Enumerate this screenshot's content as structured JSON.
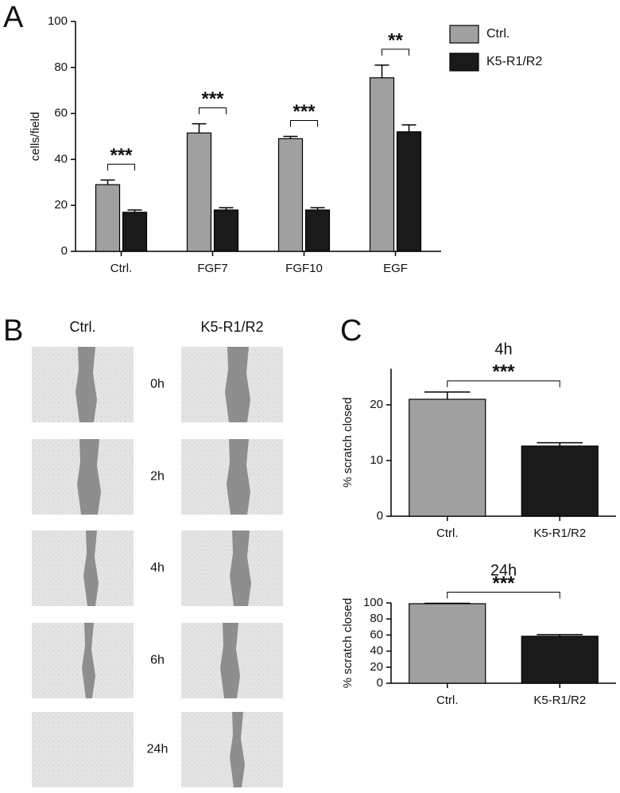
{
  "panel_labels": [
    "A",
    "B",
    "C"
  ],
  "chart_data": [
    {
      "type": "bar",
      "y_label": "cells/field",
      "categories": [
        "Ctrl.",
        "FGF7",
        "FGF10",
        "EGF"
      ],
      "series": [
        {
          "name": "Ctrl.",
          "color": "#a0a0a0",
          "values": [
            29,
            51.5,
            49,
            75.5
          ],
          "errors": [
            2,
            4,
            1,
            5.5
          ]
        },
        {
          "name": "K5-R1/R2",
          "color": "#1a1a1a",
          "values": [
            17,
            18,
            18,
            52
          ],
          "errors": [
            1,
            1,
            1,
            3
          ]
        }
      ],
      "significance": [
        "***",
        "***",
        "***",
        "**"
      ],
      "ylim": [
        0,
        100
      ],
      "yticks": [
        0,
        20,
        40,
        60,
        80,
        100
      ],
      "legend": "top-right"
    },
    {
      "type": "bar",
      "title": "4h",
      "y_label": "% scratch closed",
      "categories": [
        "Ctrl.",
        "K5-R1/R2"
      ],
      "values": [
        21,
        12.6
      ],
      "errors": [
        1.3,
        0.6
      ],
      "colors": [
        "#a0a0a0",
        "#1a1a1a"
      ],
      "significance": [
        "***"
      ],
      "ylim": [
        0,
        26.5
      ],
      "yticks": [
        0,
        10,
        20
      ]
    },
    {
      "type": "bar",
      "title": "24h",
      "y_label": "% scratch closed",
      "categories": [
        "Ctrl.",
        "K5-R1/R2"
      ],
      "values": [
        99,
        58.5
      ],
      "errors": [
        0.5,
        2
      ],
      "colors": [
        "#a0a0a0",
        "#1a1a1a"
      ],
      "significance": [
        "***"
      ],
      "ylim": [
        0,
        100
      ],
      "yticks": [
        0,
        20,
        40,
        60,
        80,
        100
      ]
    }
  ],
  "panel_b": {
    "columns": [
      "Ctrl.",
      "K5-R1/R2"
    ],
    "rows": [
      "0h",
      "2h",
      "4h",
      "6h",
      "24h"
    ]
  }
}
